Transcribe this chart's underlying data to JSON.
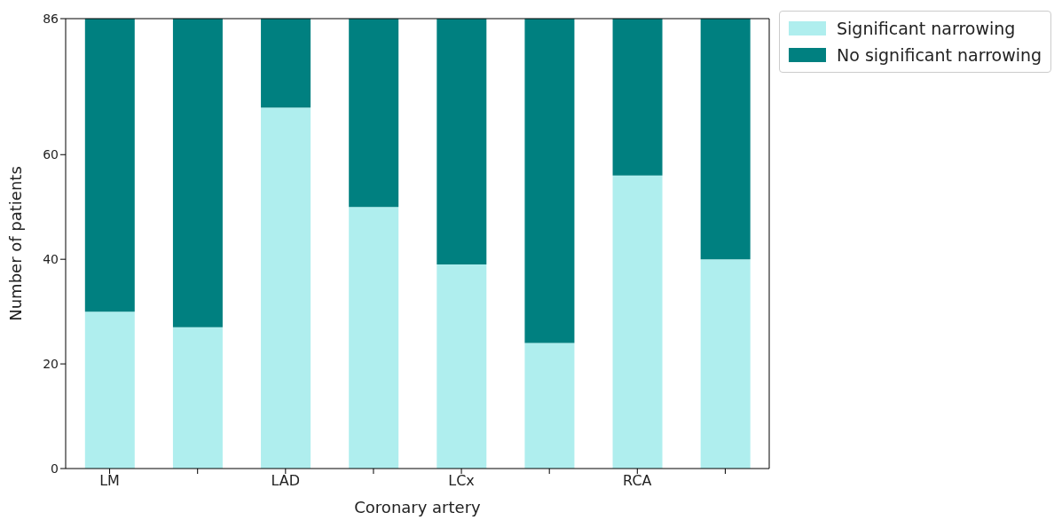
{
  "chart_data": {
    "type": "bar",
    "stacked": true,
    "xlabel": "Coronary artery",
    "ylabel": "Number of patients",
    "categories": [
      "LM",
      null,
      "LAD",
      null,
      "LCx",
      null,
      "RCA",
      null
    ],
    "series": [
      {
        "name": "Significant narrowing",
        "color": "#afeeee",
        "values": [
          30,
          27,
          69,
          50,
          39,
          24,
          56,
          40
        ]
      },
      {
        "name": "No significant narrowing",
        "color": "#008080",
        "values": [
          56,
          59,
          17,
          36,
          47,
          62,
          30,
          46
        ]
      }
    ],
    "ylim": [
      0,
      86
    ],
    "yticks": [
      0,
      20,
      40,
      60,
      86
    ],
    "grid": false,
    "legend": "top right"
  }
}
